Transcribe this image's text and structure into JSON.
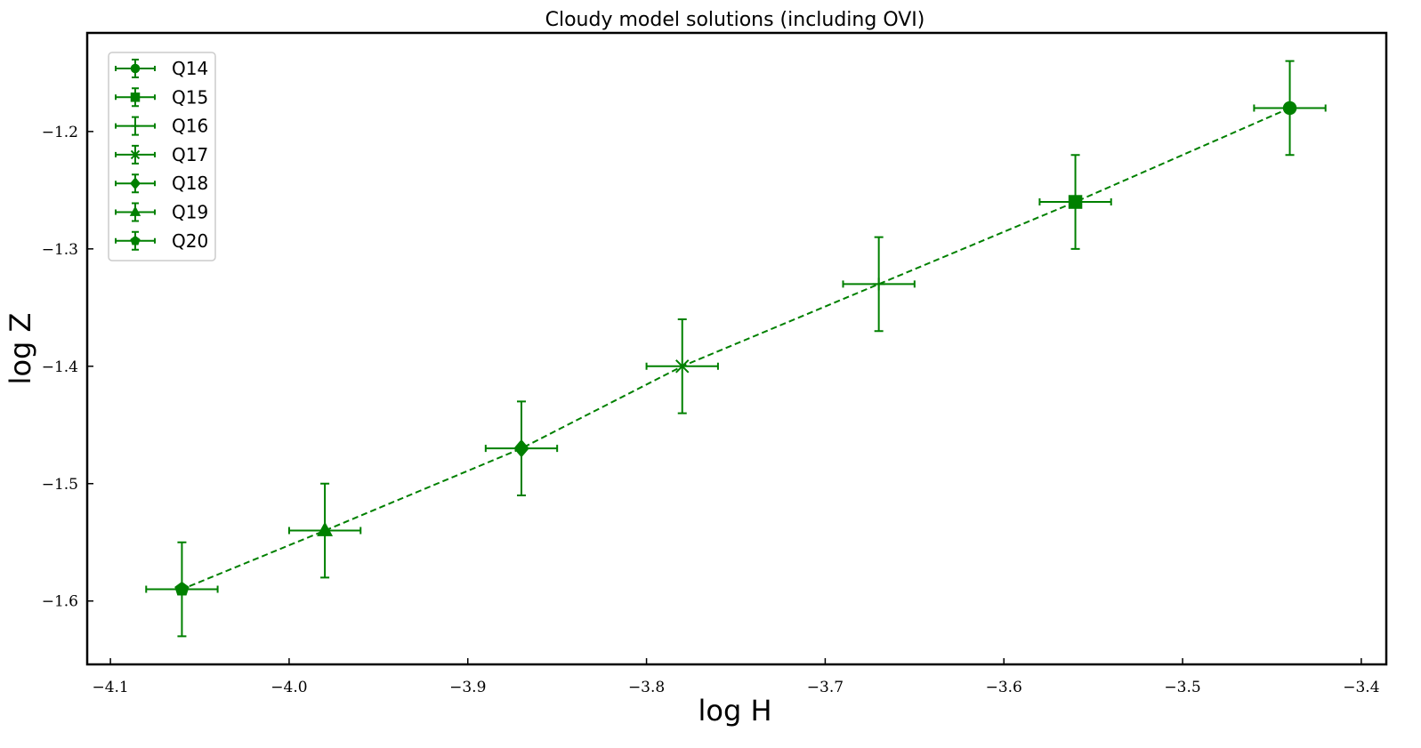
{
  "chart_data": {
    "type": "scatter",
    "title": "Cloudy model solutions (including OVI)",
    "xlabel": "log H",
    "ylabel": "log Z",
    "xlim": [
      -4.113,
      -3.386
    ],
    "ylim": [
      -1.654,
      -1.116
    ],
    "xticks": [
      -4.1,
      -4.0,
      -3.9,
      -3.8,
      -3.7,
      -3.6,
      -3.5,
      -3.4
    ],
    "xtick_labels": [
      "−4.1",
      "−4.0",
      "−3.9",
      "−3.8",
      "−3.7",
      "−3.6",
      "−3.5",
      "−3.4"
    ],
    "yticks": [
      -1.2,
      -1.3,
      -1.4,
      -1.5,
      -1.6
    ],
    "ytick_labels": [
      "−1.2",
      "−1.3",
      "−1.4",
      "−1.5",
      "−1.6"
    ],
    "grid": false,
    "legend_position": "top-left",
    "color": "#008000",
    "line_style": "dashed",
    "series": [
      {
        "name": "Q14",
        "marker": "circle",
        "x": -3.44,
        "y": -1.18,
        "xerr": 0.02,
        "yerr": 0.04
      },
      {
        "name": "Q15",
        "marker": "square",
        "x": -3.56,
        "y": -1.26,
        "xerr": 0.02,
        "yerr": 0.04
      },
      {
        "name": "Q16",
        "marker": "plus",
        "x": -3.67,
        "y": -1.33,
        "xerr": 0.02,
        "yerr": 0.04
      },
      {
        "name": "Q17",
        "marker": "x",
        "x": -3.78,
        "y": -1.4,
        "xerr": 0.02,
        "yerr": 0.04
      },
      {
        "name": "Q18",
        "marker": "diamond",
        "x": -3.87,
        "y": -1.47,
        "xerr": 0.02,
        "yerr": 0.04
      },
      {
        "name": "Q19",
        "marker": "triangle",
        "x": -3.98,
        "y": -1.54,
        "xerr": 0.02,
        "yerr": 0.04
      },
      {
        "name": "Q20",
        "marker": "pentagon",
        "x": -4.06,
        "y": -1.59,
        "xerr": 0.02,
        "yerr": 0.04
      }
    ]
  }
}
